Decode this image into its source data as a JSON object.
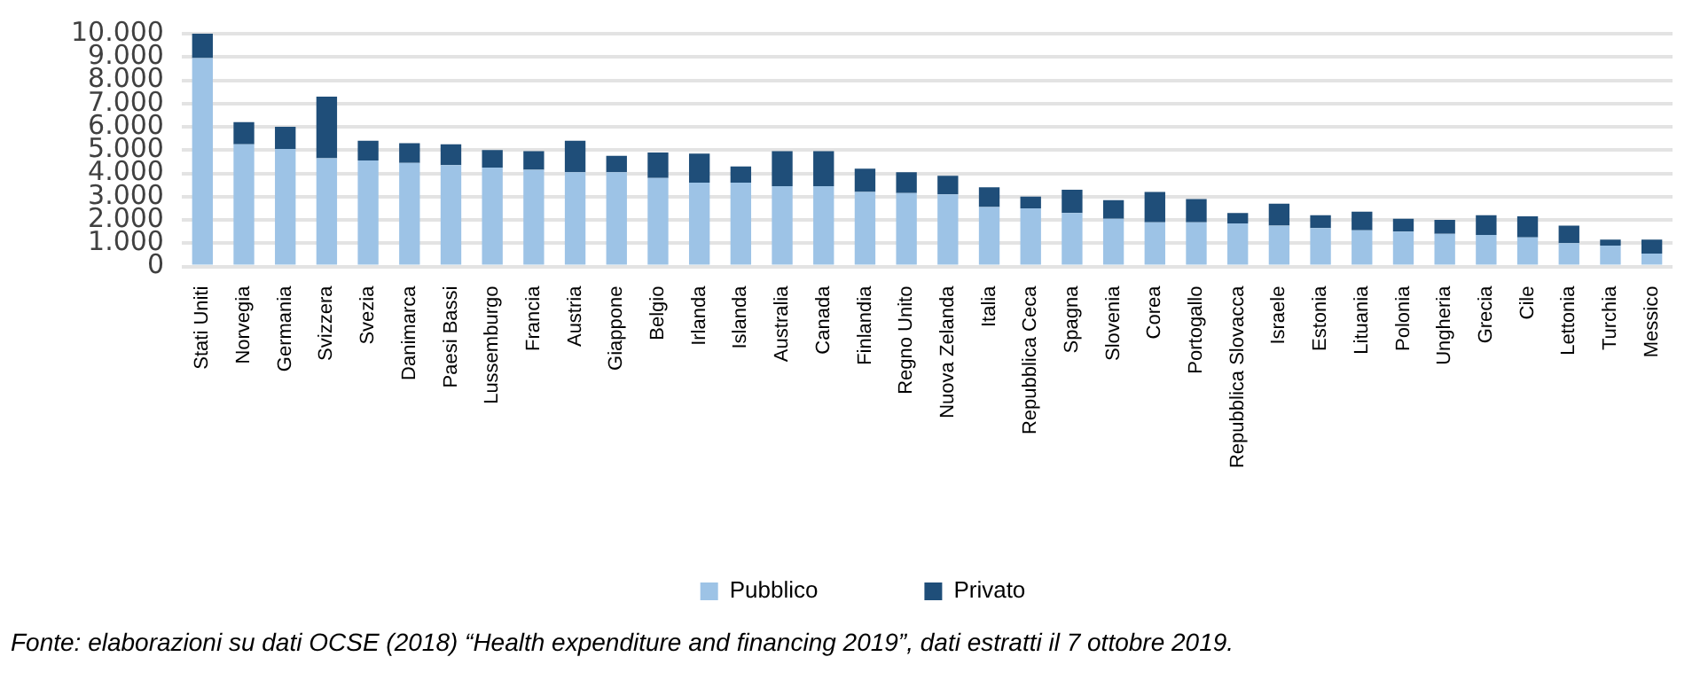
{
  "chart_data": {
    "type": "bar",
    "stacked": true,
    "categories": [
      "Stati Uniti",
      "Norvegia",
      "Germania",
      "Svizzera",
      "Svezia",
      "Danimarca",
      "Paesi Bassi",
      "Lussemburgo",
      "Francia",
      "Austria",
      "Giappone",
      "Belgio",
      "Irlanda",
      "Islanda",
      "Australia",
      "Canada",
      "Finlandia",
      "Regno Unito",
      "Nuova Zelanda",
      "Italia",
      "Repubblica Ceca",
      "Spagna",
      "Slovenia",
      "Corea",
      "Portogallo",
      "Repubblica Slovacca",
      "Israele",
      "Estonia",
      "Lituania",
      "Polonia",
      "Ungheria",
      "Grecia",
      "Cile",
      "Lettonia",
      "Turchia",
      "Messico"
    ],
    "series": [
      {
        "name": "Pubblico",
        "color": "#9dc3e6",
        "values": [
          8950,
          5250,
          5050,
          4650,
          4550,
          4450,
          4350,
          4250,
          4150,
          4050,
          4050,
          3800,
          3600,
          3600,
          3450,
          3450,
          3200,
          3150,
          3100,
          2550,
          2500,
          2300,
          2050,
          1900,
          1900,
          1850,
          1750,
          1650,
          1550,
          1500,
          1400,
          1350,
          1250,
          1000,
          900,
          550
        ]
      },
      {
        "name": "Privato",
        "color": "#1f4e79",
        "values": [
          1050,
          950,
          950,
          2650,
          850,
          850,
          900,
          750,
          800,
          1350,
          700,
          1100,
          1250,
          700,
          1500,
          1500,
          1000,
          900,
          800,
          850,
          500,
          1000,
          800,
          1300,
          1000,
          450,
          950,
          550,
          800,
          550,
          600,
          850,
          900,
          750,
          250,
          600
        ]
      }
    ],
    "ylim": [
      0,
      10000
    ],
    "yticks": [
      0,
      {
        "value": 1000,
        "label": "1.000"
      },
      {
        "value": 2000,
        "label": "2.000"
      },
      {
        "value": 3000,
        "label": "3.000"
      },
      {
        "value": 4000,
        "label": "4.000"
      },
      {
        "value": 5000,
        "label": "5.000"
      },
      {
        "value": 6000,
        "label": "6.000"
      },
      {
        "value": 7000,
        "label": "7.000"
      },
      {
        "value": 8000,
        "label": "8.000"
      },
      {
        "value": 9000,
        "label": "9.000"
      },
      {
        "value": 10000,
        "label": "10.000"
      }
    ],
    "grid": "y",
    "legend": "bottom",
    "annotations": [
      "Fonte: elaborazioni su dati OCSE (2018) “Health expenditure and financing 2019”, dati estratti il 7 ottobre 2019."
    ]
  }
}
